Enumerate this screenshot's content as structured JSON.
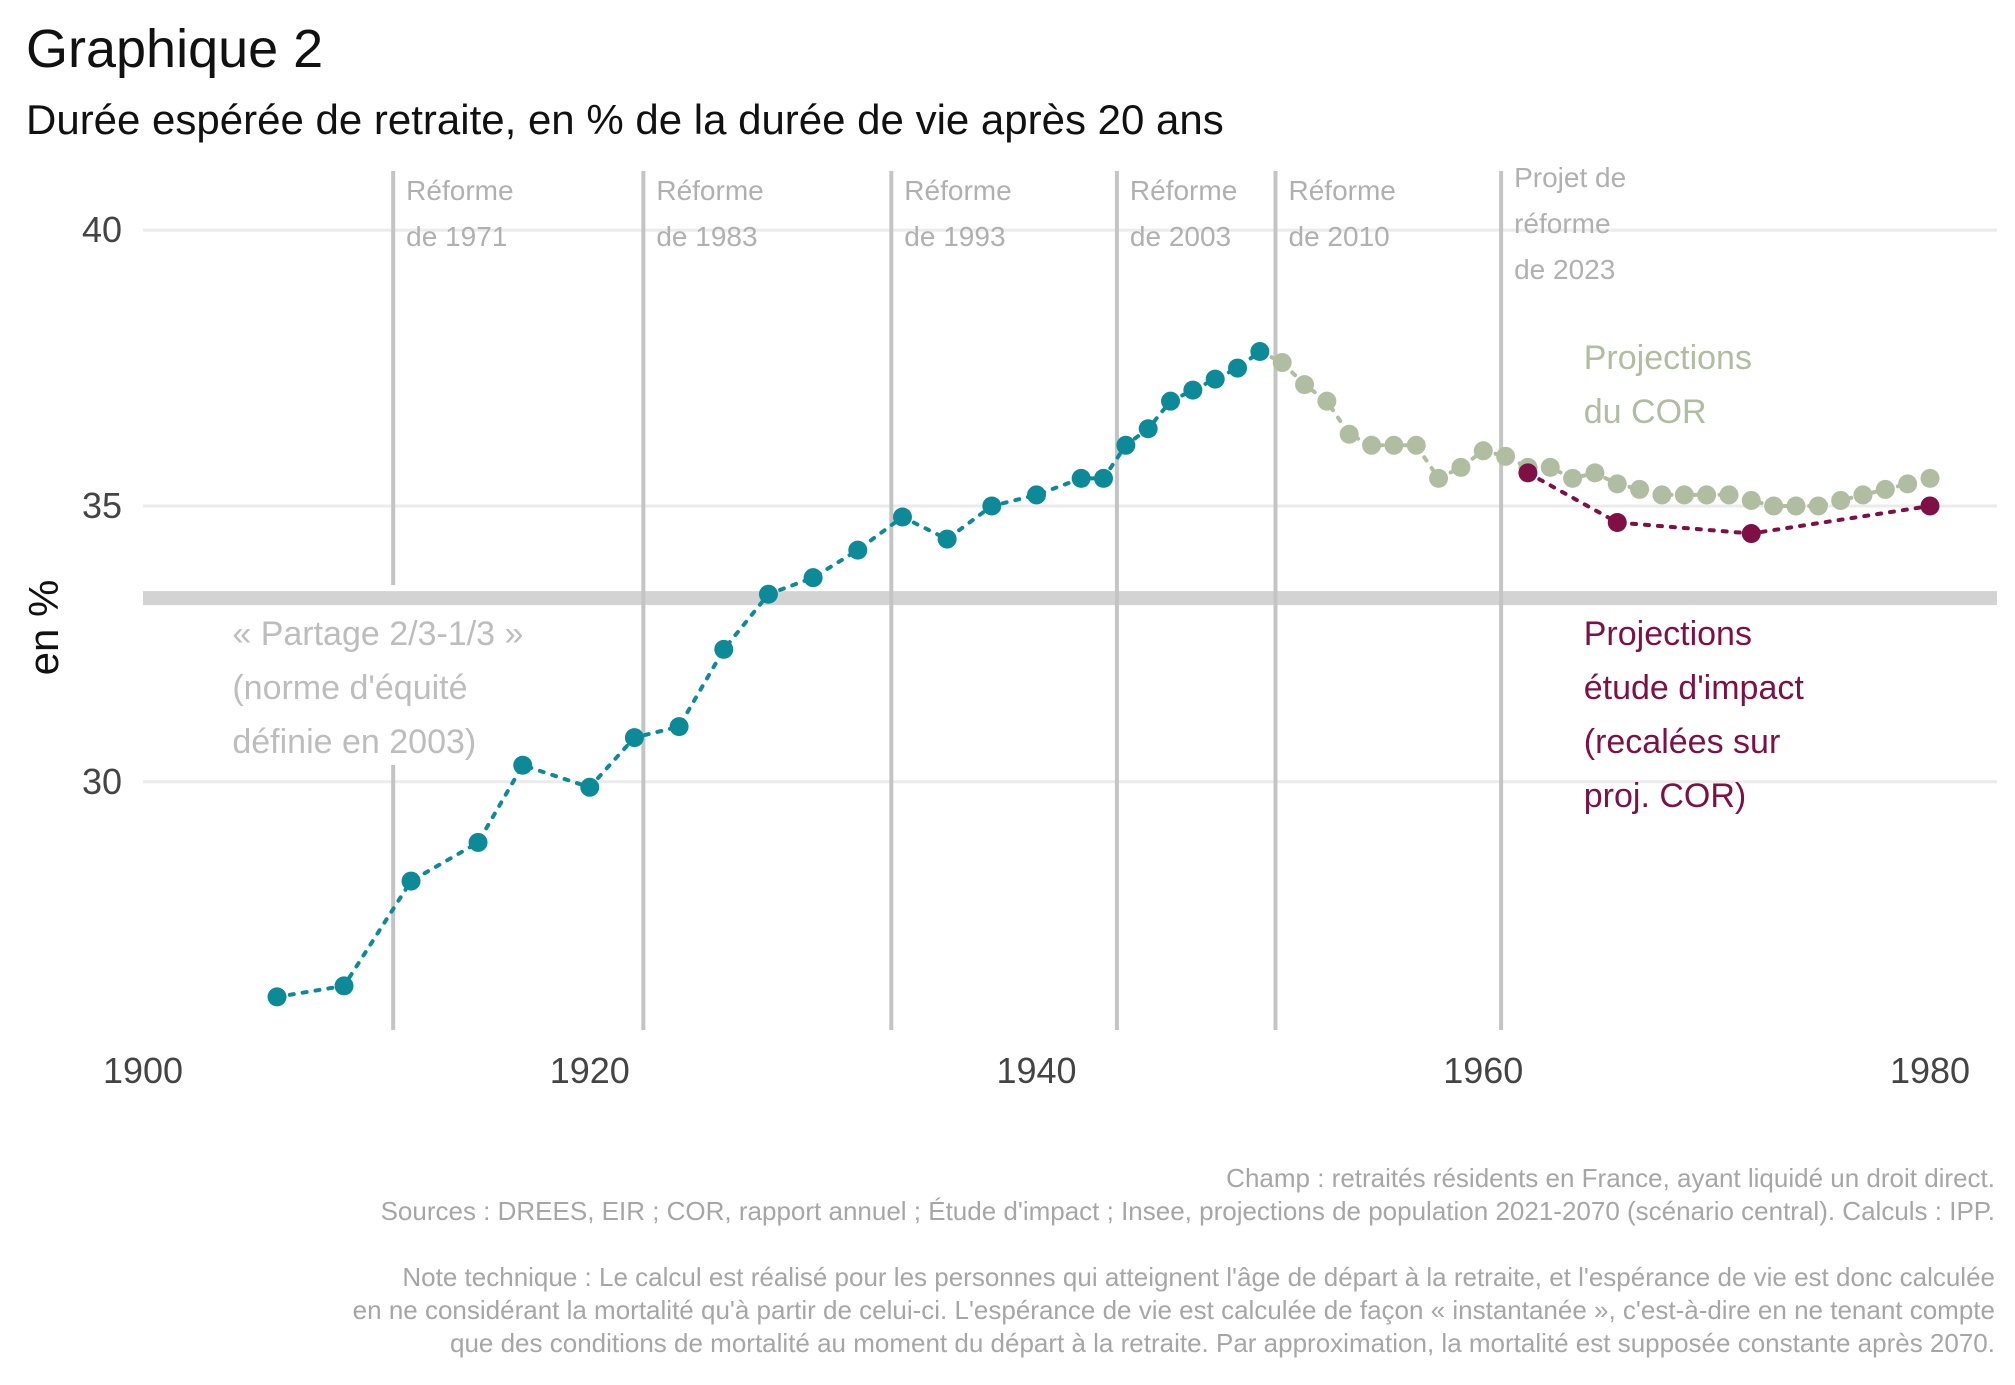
{
  "title": "Graphique 2",
  "subtitle": "Durée espérée de retraite, en % de la durée de vie après 20 ans",
  "footer": [
    "Champ : retraités résidents en France, ayant liquidé un droit direct.",
    "Sources : DREES, EIR ; COR, rapport annuel ; Étude d'impact ; Insee, projections de population 2021-2070 (scénario central). Calculs : IPP.",
    "Note technique : Le calcul est réalisé pour les personnes qui atteignent l'âge de départ à la retraite, et l'espérance de vie est donc calculée",
    "en ne considérant la mortalité qu'à partir de celui-ci. L'espérance de vie est calculée de façon « instantanée », c'est-à-dire en ne tenant compte",
    "que des conditions de mortalité au moment du départ à la retraite. Par approximation, la mortalité est supposée constante après 2070."
  ],
  "chart_data": {
    "type": "scatter",
    "ylabel": "en %",
    "xlabel": "",
    "xlim": [
      1900,
      1983
    ],
    "ylim": [
      25.5,
      41
    ],
    "x_ticks": [
      1900,
      1920,
      1940,
      1960,
      1980
    ],
    "y_ticks": [
      30,
      35,
      40
    ],
    "grid": "horizontal",
    "colors": {
      "observed": "#0d8a98",
      "cor": "#b1bda1",
      "etude": "#7e1045",
      "reform_line": "#c4c4c4",
      "norm_line": "#d3d3d3",
      "grid": "#ebebeb"
    },
    "series": [
      {
        "key": "observed",
        "x": [
          1906,
          1909,
          1912,
          1915,
          1917,
          1920,
          1922,
          1924,
          1926,
          1928,
          1930,
          1932,
          1934,
          1936,
          1938,
          1940,
          1942,
          1943,
          1944,
          1945,
          1946,
          1947,
          1948,
          1949,
          1950
        ],
        "y": [
          26.1,
          26.3,
          28.2,
          28.9,
          30.3,
          29.9,
          30.8,
          31.0,
          32.4,
          33.4,
          33.7,
          34.2,
          34.8,
          34.4,
          35.0,
          35.2,
          35.5,
          35.5,
          36.1,
          36.4,
          36.9,
          37.1,
          37.3,
          37.5,
          37.8
        ]
      },
      {
        "name": "Projections du COR",
        "key": "cor",
        "x": [
          1951,
          1952,
          1953,
          1954,
          1955,
          1956,
          1957,
          1958,
          1959,
          1960,
          1961,
          1962,
          1963,
          1964,
          1965,
          1966,
          1967,
          1968,
          1969,
          1970,
          1971,
          1972,
          1973,
          1974,
          1975,
          1976,
          1977,
          1978,
          1979,
          1980
        ],
        "y": [
          37.6,
          37.2,
          36.9,
          36.3,
          36.1,
          36.1,
          36.1,
          35.5,
          35.7,
          36.0,
          35.9,
          35.7,
          35.7,
          35.5,
          35.6,
          35.4,
          35.3,
          35.2,
          35.2,
          35.2,
          35.2,
          35.1,
          35.0,
          35.0,
          35.0,
          35.1,
          35.2,
          35.3,
          35.4,
          35.5
        ]
      },
      {
        "name": "Projections étude d'impact (recalées sur proj. COR)",
        "key": "etude",
        "x": [
          1962,
          1966,
          1972,
          1980
        ],
        "y": [
          35.6,
          34.7,
          34.5,
          35.0
        ]
      }
    ],
    "reforms": [
      {
        "x": 1911.2,
        "label": [
          "Réforme",
          "de 1971"
        ]
      },
      {
        "x": 1922.4,
        "label": [
          "Réforme",
          "de 1983"
        ]
      },
      {
        "x": 1933.5,
        "label": [
          "Réforme",
          "de 1993"
        ]
      },
      {
        "x": 1943.6,
        "label": [
          "Réforme",
          "de 2003"
        ]
      },
      {
        "x": 1950.7,
        "label": [
          "Réforme",
          "de 2010"
        ]
      },
      {
        "x": 1960.8,
        "label": [
          "Projet de",
          "réforme",
          "de 2023"
        ]
      }
    ],
    "norm_line": {
      "y": 33.33
    },
    "annotations": [
      {
        "key": "norm",
        "x": 1904,
        "y": 32.7,
        "lines": [
          "« Partage 2/3-1/3 »",
          "(norme d'équité",
          "définie en 2003)"
        ]
      },
      {
        "key": "cor",
        "x": 1964.5,
        "y": 37.7,
        "lines": [
          "Projections",
          "du COR"
        ]
      },
      {
        "key": "etude",
        "x": 1964.5,
        "y": 32.7,
        "lines": [
          "Projections",
          "étude d'impact",
          "(recalées sur",
          "proj. COR)"
        ]
      }
    ]
  }
}
